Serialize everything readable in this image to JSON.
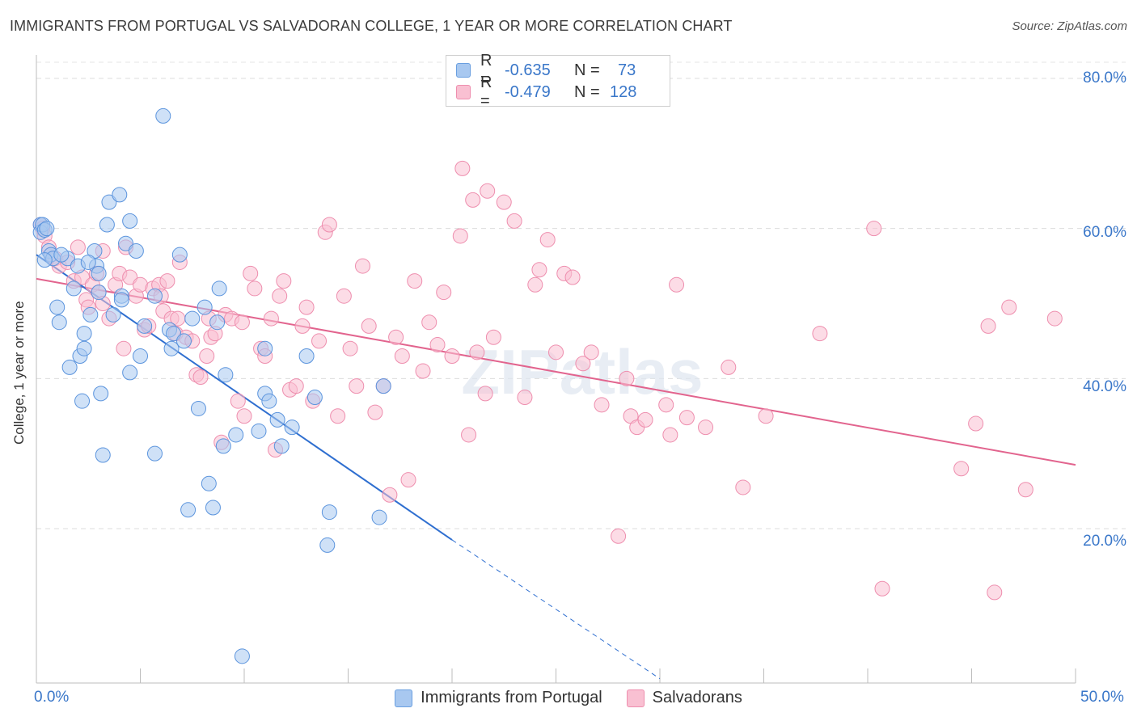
{
  "header": {
    "title": "IMMIGRANTS FROM PORTUGAL VS SALVADORAN COLLEGE, 1 YEAR OR MORE CORRELATION CHART",
    "source": "Source: ZipAtlas.com"
  },
  "watermark": "ZIPatlas",
  "legend": {
    "rows": [
      {
        "r_label": "R =",
        "r_value": "-0.635",
        "n_label": "N =",
        "n_value": "73",
        "color": "#a8c8f0",
        "border": "#6a9fe0"
      },
      {
        "r_label": "R =",
        "r_value": "-0.479",
        "n_label": "N =",
        "n_value": "128",
        "color": "#f9c0d2",
        "border": "#ee8eae"
      }
    ]
  },
  "bottom_legend": [
    {
      "label": "Immigrants from Portugal",
      "color": "#a8c8f0",
      "border": "#6a9fe0"
    },
    {
      "label": "Salvadorans",
      "color": "#f9c0d2",
      "border": "#ee8eae"
    }
  ],
  "axis_labels": {
    "y": "College, 1 year or more",
    "x_left": "0.0%",
    "x_right": "50.0%",
    "y_ticks": [
      "80.0%",
      "60.0%",
      "40.0%",
      "20.0%"
    ]
  },
  "chart_data": {
    "type": "scatter",
    "xlabel": "",
    "ylabel": "College, 1 year or more",
    "xlim": [
      0,
      50
    ],
    "ylim": [
      0,
      83
    ],
    "yticks": [
      20,
      40,
      60,
      80
    ],
    "grid": true,
    "colors": {
      "blue": "#5b94dd",
      "pink": "#ee86a8",
      "blue_line": "#2f6fd0",
      "pink_line": "#e2648e"
    },
    "series": [
      {
        "name": "Immigrants from Portugal",
        "trend": {
          "x0": 0.0,
          "y0": 56.5,
          "x1": 20.0,
          "y1": 18.5,
          "dash_to_x": 30.0,
          "dash_to_y": 0.0
        },
        "points": [
          [
            0.2,
            60.5
          ],
          [
            0.2,
            59.5
          ],
          [
            0.3,
            60.5
          ],
          [
            0.4,
            59.8
          ],
          [
            0.5,
            60.0
          ],
          [
            0.6,
            57.0
          ],
          [
            0.7,
            56.5
          ],
          [
            0.8,
            56.0
          ],
          [
            1.0,
            49.5
          ],
          [
            1.1,
            47.5
          ],
          [
            1.5,
            56.0
          ],
          [
            1.8,
            52.0
          ],
          [
            2.0,
            55.0
          ],
          [
            2.1,
            43.0
          ],
          [
            2.2,
            37.0
          ],
          [
            2.3,
            44.0
          ],
          [
            2.3,
            46.0
          ],
          [
            2.6,
            48.5
          ],
          [
            2.8,
            57.0
          ],
          [
            2.9,
            55.0
          ],
          [
            3.0,
            54.0
          ],
          [
            3.0,
            51.5
          ],
          [
            3.1,
            38.0
          ],
          [
            3.2,
            29.8
          ],
          [
            3.4,
            60.5
          ],
          [
            3.5,
            63.5
          ],
          [
            3.7,
            48.5
          ],
          [
            4.0,
            64.5
          ],
          [
            4.1,
            51.0
          ],
          [
            4.1,
            50.5
          ],
          [
            4.3,
            58.0
          ],
          [
            4.5,
            61.0
          ],
          [
            4.5,
            40.8
          ],
          [
            4.8,
            57.0
          ],
          [
            5.0,
            43.0
          ],
          [
            5.2,
            47.0
          ],
          [
            5.7,
            51.0
          ],
          [
            5.7,
            30.0
          ],
          [
            6.1,
            75.0
          ],
          [
            6.4,
            46.5
          ],
          [
            6.5,
            44.0
          ],
          [
            6.6,
            46.0
          ],
          [
            6.9,
            56.5
          ],
          [
            7.1,
            45.0
          ],
          [
            7.3,
            22.5
          ],
          [
            7.5,
            48.0
          ],
          [
            7.8,
            36.0
          ],
          [
            8.1,
            49.5
          ],
          [
            8.3,
            26.0
          ],
          [
            8.5,
            22.8
          ],
          [
            8.7,
            47.5
          ],
          [
            8.8,
            52.0
          ],
          [
            9.0,
            31.0
          ],
          [
            9.1,
            40.5
          ],
          [
            9.6,
            32.5
          ],
          [
            9.9,
            3.0
          ],
          [
            10.7,
            33.0
          ],
          [
            11.0,
            44.0
          ],
          [
            11.0,
            38.0
          ],
          [
            11.2,
            37.0
          ],
          [
            11.6,
            34.5
          ],
          [
            11.8,
            31.0
          ],
          [
            12.3,
            33.5
          ],
          [
            13.0,
            43.0
          ],
          [
            13.4,
            37.5
          ],
          [
            14.0,
            17.8
          ],
          [
            14.1,
            22.2
          ],
          [
            16.5,
            21.5
          ],
          [
            16.7,
            39.0
          ],
          [
            2.5,
            55.5
          ],
          [
            1.2,
            56.5
          ],
          [
            1.6,
            41.5
          ],
          [
            0.4,
            55.8
          ]
        ]
      },
      {
        "name": "Salvadorans",
        "trend": {
          "x0": 0.0,
          "y0": 53.3,
          "x1": 50.0,
          "y1": 28.5
        },
        "points": [
          [
            0.2,
            60.5
          ],
          [
            0.3,
            60.0
          ],
          [
            0.4,
            59.0
          ],
          [
            0.6,
            57.5
          ],
          [
            0.7,
            56.5
          ],
          [
            0.9,
            56.0
          ],
          [
            1.1,
            55.0
          ],
          [
            1.5,
            55.5
          ],
          [
            1.8,
            53.0
          ],
          [
            2.0,
            57.5
          ],
          [
            2.2,
            53.5
          ],
          [
            2.4,
            50.5
          ],
          [
            2.5,
            49.5
          ],
          [
            2.7,
            52.5
          ],
          [
            2.9,
            54.0
          ],
          [
            3.0,
            51.5
          ],
          [
            3.2,
            50.0
          ],
          [
            3.5,
            48.0
          ],
          [
            3.8,
            52.5
          ],
          [
            4.0,
            54.0
          ],
          [
            4.2,
            44.0
          ],
          [
            4.3,
            57.5
          ],
          [
            4.5,
            53.5
          ],
          [
            4.8,
            51.0
          ],
          [
            5.0,
            52.5
          ],
          [
            5.2,
            46.5
          ],
          [
            5.4,
            47.0
          ],
          [
            5.6,
            52.0
          ],
          [
            5.9,
            52.5
          ],
          [
            6.0,
            51.0
          ],
          [
            6.1,
            49.0
          ],
          [
            6.3,
            53.0
          ],
          [
            6.5,
            48.0
          ],
          [
            6.7,
            46.0
          ],
          [
            6.8,
            48.0
          ],
          [
            6.9,
            55.5
          ],
          [
            7.2,
            45.5
          ],
          [
            7.5,
            45.0
          ],
          [
            7.7,
            40.5
          ],
          [
            7.9,
            40.2
          ],
          [
            8.2,
            43.0
          ],
          [
            8.3,
            48.0
          ],
          [
            8.4,
            45.5
          ],
          [
            8.6,
            46.0
          ],
          [
            8.9,
            31.5
          ],
          [
            9.1,
            48.5
          ],
          [
            9.4,
            48.0
          ],
          [
            9.7,
            37.0
          ],
          [
            9.9,
            47.5
          ],
          [
            10.0,
            35.0
          ],
          [
            10.3,
            54.0
          ],
          [
            10.5,
            52.0
          ],
          [
            10.8,
            44.0
          ],
          [
            11.0,
            43.0
          ],
          [
            11.3,
            48.0
          ],
          [
            11.5,
            30.5
          ],
          [
            11.7,
            51.0
          ],
          [
            11.9,
            53.0
          ],
          [
            12.2,
            38.5
          ],
          [
            12.5,
            39.0
          ],
          [
            12.8,
            47.0
          ],
          [
            13.0,
            49.5
          ],
          [
            13.3,
            37.0
          ],
          [
            13.6,
            45.0
          ],
          [
            13.9,
            59.5
          ],
          [
            14.1,
            60.5
          ],
          [
            14.5,
            35.0
          ],
          [
            14.8,
            51.0
          ],
          [
            15.1,
            44.0
          ],
          [
            15.4,
            39.0
          ],
          [
            15.7,
            55.0
          ],
          [
            16.0,
            47.0
          ],
          [
            16.3,
            35.5
          ],
          [
            16.7,
            39.0
          ],
          [
            17.0,
            24.5
          ],
          [
            17.3,
            45.5
          ],
          [
            17.6,
            43.0
          ],
          [
            17.9,
            26.5
          ],
          [
            18.2,
            53.0
          ],
          [
            18.6,
            41.0
          ],
          [
            18.9,
            47.5
          ],
          [
            19.3,
            44.5
          ],
          [
            19.6,
            51.5
          ],
          [
            20.0,
            43.0
          ],
          [
            20.4,
            59.0
          ],
          [
            20.8,
            32.5
          ],
          [
            21.2,
            43.5
          ],
          [
            21.6,
            38.0
          ],
          [
            22.0,
            45.5
          ],
          [
            22.5,
            63.5
          ],
          [
            23.0,
            61.0
          ],
          [
            23.5,
            37.5
          ],
          [
            24.0,
            52.5
          ],
          [
            24.2,
            54.5
          ],
          [
            24.6,
            58.5
          ],
          [
            25.0,
            43.5
          ],
          [
            25.4,
            54.0
          ],
          [
            25.8,
            53.5
          ],
          [
            26.3,
            42.0
          ],
          [
            26.7,
            43.5
          ],
          [
            27.2,
            36.5
          ],
          [
            28.0,
            19.0
          ],
          [
            28.4,
            40.0
          ],
          [
            28.6,
            35.0
          ],
          [
            28.9,
            33.5
          ],
          [
            29.3,
            34.5
          ],
          [
            30.3,
            36.5
          ],
          [
            30.5,
            32.5
          ],
          [
            30.8,
            52.5
          ],
          [
            31.3,
            34.8
          ],
          [
            32.2,
            33.5
          ],
          [
            33.3,
            41.5
          ],
          [
            34.0,
            25.5
          ],
          [
            35.1,
            35.0
          ],
          [
            37.7,
            46.0
          ],
          [
            40.3,
            60.0
          ],
          [
            40.7,
            12.0
          ],
          [
            45.8,
            47.0
          ],
          [
            44.5,
            28.0
          ],
          [
            45.2,
            34.0
          ],
          [
            46.1,
            11.5
          ],
          [
            46.8,
            49.5
          ],
          [
            47.6,
            25.2
          ],
          [
            49.0,
            48.0
          ],
          [
            21.7,
            65.0
          ],
          [
            20.5,
            68.0
          ],
          [
            21.0,
            63.8
          ],
          [
            3.2,
            57.0
          ]
        ]
      }
    ]
  }
}
